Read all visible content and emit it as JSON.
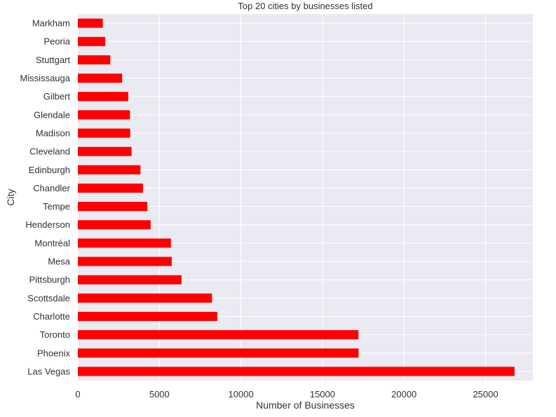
{
  "chart_data": {
    "type": "bar",
    "orientation": "horizontal",
    "title": "Top 20 cities by businesses listed",
    "xlabel": "Number of Businesses",
    "ylabel": "City",
    "categories": [
      "Las Vegas",
      "Phoenix",
      "Toronto",
      "Charlotte",
      "Scottsdale",
      "Pittsburgh",
      "Mesa",
      "Montréal",
      "Henderson",
      "Tempe",
      "Chandler",
      "Edinburgh",
      "Cleveland",
      "Madison",
      "Glendale",
      "Gilbert",
      "Mississauga",
      "Stuttgart",
      "Peoria",
      "Markham"
    ],
    "values": [
      26775,
      17213,
      17206,
      8553,
      8228,
      6355,
      5760,
      5709,
      4465,
      4263,
      3994,
      3840,
      3294,
      3212,
      3197,
      3094,
      2716,
      1992,
      1682,
      1532
    ],
    "xlim": [
      0,
      27900
    ],
    "xticks": [
      0,
      5000,
      10000,
      15000,
      20000,
      25000
    ],
    "grid": true,
    "bar_color": "#ff0000",
    "background_color": "#eaeaf2",
    "text_color": "#333333"
  }
}
